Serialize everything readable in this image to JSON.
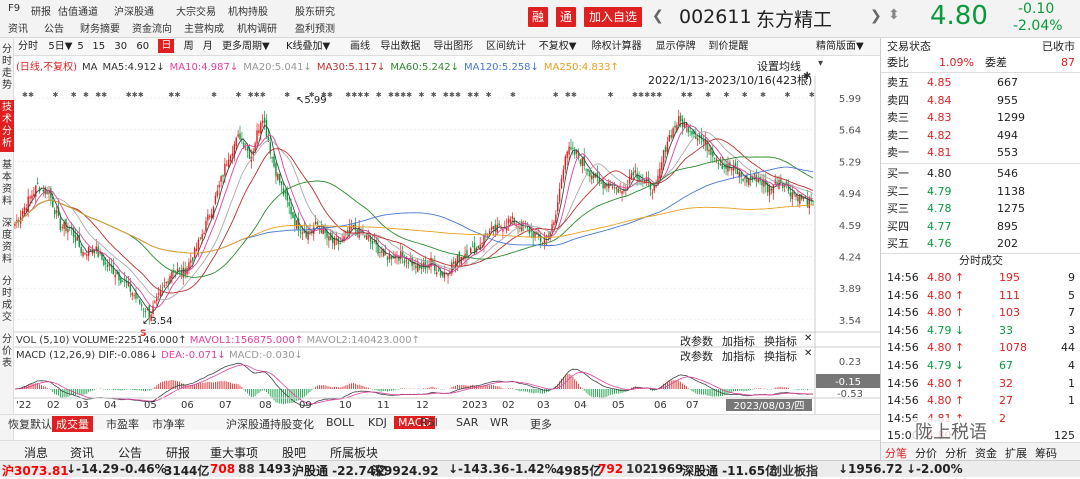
{
  "top": {
    "nav_row1": [
      "F9",
      "研报",
      "估值通道",
      "沪深股通",
      "大宗交易",
      "机构持股",
      "股东研究"
    ],
    "nav_row2": [
      "资讯",
      "公告",
      "财务摘要",
      "资金流向",
      "主营构成",
      "机构调研",
      "盈利预测"
    ],
    "rong": "融",
    "tong": "通",
    "add_watch": "加入自选",
    "code": "002611",
    "name": "东方精工",
    "price": "4.80",
    "change": "-0.10",
    "change_pct": "-2.04%"
  },
  "left_tabs": [
    {
      "label": "分时走势",
      "active": false
    },
    {
      "label": "技术分析",
      "active": true
    },
    {
      "label": "基本资料",
      "active": false
    },
    {
      "label": "深度资料",
      "active": false
    },
    {
      "label": "分时成交",
      "active": false
    },
    {
      "label": "分价表",
      "active": false
    }
  ],
  "period_toolbar": {
    "items": [
      "分时",
      "5日▼",
      "5",
      "15",
      "30",
      "60",
      "日",
      "周",
      "月",
      "更多周期▼",
      "K线叠加▼",
      "画线",
      "导出数据",
      "导出图形",
      "区间统计",
      "不复权▼",
      "除权计算器",
      "显示停牌",
      "到价提醒"
    ],
    "active": "日",
    "right": "精简版面▼"
  },
  "ma_legend": [
    {
      "text": "(日线,不复权)",
      "color": "#e02020"
    },
    {
      "text": "MA",
      "color": "#333"
    },
    {
      "text": "MA5:4.912↓",
      "color": "#333"
    },
    {
      "text": "MA10:4.987↓",
      "color": "#e040a0"
    },
    {
      "text": "MA20:5.041↓",
      "color": "#999"
    },
    {
      "text": "MA30:5.117↓",
      "color": "#c03030"
    },
    {
      "text": "MA60:5.242↓",
      "color": "#2e8b2e"
    },
    {
      "text": "MA120:5.258↓",
      "color": "#4a78d0"
    },
    {
      "text": "MA250:4.833↑",
      "color": "#e8a020"
    }
  ],
  "settings_ma": "设置均线",
  "date_range": "2022/1/13-2023/10/16(423根)",
  "chart_data": {
    "type": "candlestick",
    "y_ticks": [
      5.99,
      5.64,
      5.29,
      4.94,
      4.59,
      4.24,
      3.89,
      3.54
    ],
    "ylim": [
      3.45,
      6.1
    ],
    "x_labels": [
      "'22",
      "02",
      "03",
      "04",
      "05",
      "06",
      "07",
      "08",
      "09",
      "10",
      "11",
      "12",
      "2023",
      "02",
      "03",
      "04",
      "05",
      "06",
      "07"
    ],
    "annotations": {
      "high": "5.99",
      "low": "3.54"
    },
    "close_series": [
      4.6,
      4.82,
      5.02,
      4.96,
      4.58,
      4.54,
      4.28,
      4.34,
      4.16,
      4.06,
      3.92,
      3.74,
      3.6,
      3.83,
      4.1,
      4.06,
      4.28,
      4.6,
      4.94,
      5.36,
      5.58,
      5.34,
      5.82,
      5.26,
      4.9,
      4.6,
      4.5,
      4.6,
      4.4,
      4.38,
      4.56,
      4.48,
      4.36,
      4.24,
      4.26,
      4.2,
      4.1,
      4.18,
      4.04,
      4.16,
      4.28,
      4.32,
      4.5,
      4.54,
      4.64,
      4.58,
      4.5,
      4.4,
      4.6,
      5.42,
      5.36,
      5.2,
      5.04,
      5.06,
      4.94,
      5.2,
      5.06,
      4.98,
      5.52,
      5.74,
      5.66,
      5.54,
      5.4,
      5.24,
      5.2,
      5.08,
      5.12,
      4.98,
      5.1,
      4.96,
      4.88,
      4.8
    ],
    "ma_series": {
      "MA5": [],
      "MA10": []
    },
    "volume": {
      "label": "VOL (5,10) VOLUME:225146.000↑",
      "mavol1": "MAVOL1:156875.000↑",
      "mavol2": "MAVOL2:140423.000↑"
    },
    "macd": {
      "label": "MACD (12,26,9)",
      "dif": "DIF:-0.086↓",
      "dea": "DEA:-0.071↓",
      "macd": "MACD:-0.030↓",
      "y_ticks": [
        0.23,
        -0.15,
        -0.53
      ],
      "current": "-0.15"
    },
    "cursor_date": "2023/08/03/四"
  },
  "indicator_links": {
    "param": "改参数",
    "add": "加指标",
    "swap": "换指标"
  },
  "indicator_tabs": {
    "items": [
      "恢复默认",
      "成交量",
      "市盈率",
      "市净率",
      "沪深股通持股变化",
      "BOLL",
      "KDJ",
      "MACD",
      "RSI",
      "SAR",
      "WR",
      "更多"
    ],
    "active": [
      "成交量",
      "MACD"
    ]
  },
  "info_tabs": [
    "消息",
    "资讯",
    "公告",
    "研报",
    "重大事项",
    "股吧",
    "所属板块"
  ],
  "right_panel": {
    "trade_status_label": "交易状态",
    "trade_status": "已收市",
    "webi_label": "委比",
    "webi": "1.09%",
    "wecha_label": "委差",
    "wecha": "87",
    "asks": [
      {
        "label": "卖五",
        "price": "4.85",
        "vol": "667"
      },
      {
        "label": "卖四",
        "price": "4.84",
        "vol": "955"
      },
      {
        "label": "卖三",
        "price": "4.83",
        "vol": "1299"
      },
      {
        "label": "卖二",
        "price": "4.82",
        "vol": "494"
      },
      {
        "label": "卖一",
        "price": "4.81",
        "vol": "553"
      }
    ],
    "bids": [
      {
        "label": "买一",
        "price": "4.80",
        "vol": "546"
      },
      {
        "label": "买二",
        "price": "4.79",
        "vol": "1138"
      },
      {
        "label": "买三",
        "price": "4.78",
        "vol": "1275"
      },
      {
        "label": "买四",
        "price": "4.77",
        "vol": "895"
      },
      {
        "label": "买五",
        "price": "4.76",
        "vol": "202"
      }
    ],
    "ticks_title": "分时成交",
    "ticks": [
      {
        "time": "14:56",
        "price": "4.80",
        "dir": "↑",
        "vol": "195",
        "n": "9",
        "c": "red"
      },
      {
        "time": "14:56",
        "price": "4.80",
        "dir": "↑",
        "vol": "111",
        "n": "5",
        "c": "red"
      },
      {
        "time": "14:56",
        "price": "4.80",
        "dir": "↑",
        "vol": "103",
        "n": "7",
        "c": "red"
      },
      {
        "time": "14:56",
        "price": "4.79",
        "dir": "↓",
        "vol": "33",
        "n": "3",
        "c": "grn"
      },
      {
        "time": "14:56",
        "price": "4.80",
        "dir": "↑",
        "vol": "1078",
        "n": "44",
        "c": "red"
      },
      {
        "time": "14:56",
        "price": "4.79",
        "dir": "↓",
        "vol": "67",
        "n": "4",
        "c": "grn"
      },
      {
        "time": "14:56",
        "price": "4.80",
        "dir": "↑",
        "vol": "32",
        "n": "1",
        "c": "red"
      },
      {
        "time": "14:56",
        "price": "4.80",
        "dir": "↑",
        "vol": "27",
        "n": "1",
        "c": "red"
      },
      {
        "time": "14:56",
        "price": "4.81",
        "dir": "↑",
        "vol": "2",
        "n": "",
        "c": "red"
      },
      {
        "time": "15:00",
        "price": "4.80",
        "dir": "",
        "vol": "",
        "n": "125",
        "c": "red"
      }
    ],
    "bottom_tabs": [
      "分笔",
      "分价",
      "分析",
      "资金",
      "扩展",
      "筹码"
    ],
    "watermark": "陇上税语"
  },
  "status_bar": [
    {
      "t": "沪3073.81",
      "c": "red"
    },
    {
      "t": "↓-14.29",
      "c": "grn"
    },
    {
      "t": "-0.46%",
      "c": "grn"
    },
    {
      "t": "3144亿",
      "c": "blu"
    },
    {
      "t": "708",
      "c": "red"
    },
    {
      "t": "88",
      "c": "#333"
    },
    {
      "t": "1493",
      "c": "grn"
    },
    {
      "t": "沪股通 -22.74亿",
      "c": "grn"
    },
    {
      "t": "深9924.92",
      "c": "grn"
    },
    {
      "t": "↓-143.36",
      "c": "grn"
    },
    {
      "t": "-1.42%",
      "c": "grn"
    },
    {
      "t": "4985亿",
      "c": "blu"
    },
    {
      "t": "792",
      "c": "red"
    },
    {
      "t": "102",
      "c": "#333"
    },
    {
      "t": "1969",
      "c": "grn"
    },
    {
      "t": "深股通 -11.65亿",
      "c": "grn"
    },
    {
      "t": "创业板指",
      "c": "#333"
    },
    {
      "t": "↓1956.72",
      "c": "grn"
    },
    {
      "t": "↓-2.00%",
      "c": "grn"
    }
  ]
}
